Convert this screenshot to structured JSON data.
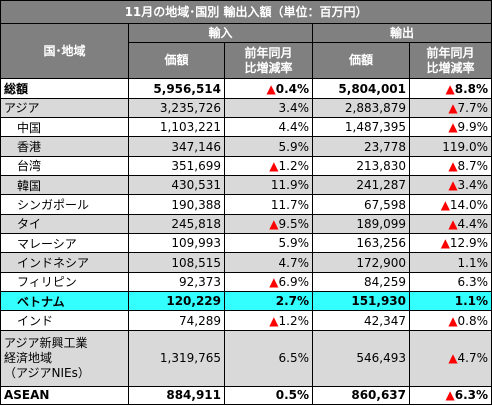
{
  "title": "11月の地域･国別 輸出入額（単位：百万円）",
  "header": {
    "region_label": "国･地域",
    "import_label": "輸入",
    "export_label": "輸出",
    "value_label": "価額",
    "yoy_line1": "前年同月",
    "yoy_line2": "比増減率"
  },
  "rows": [
    {
      "name": "総額",
      "imp": "5,956,514",
      "imp_tri": "▲",
      "imp_pct": "0.4%",
      "exp": "5,804,001",
      "exp_tri": "▲",
      "exp_pct": "8.8%",
      "style": "bold white",
      "indent": false
    },
    {
      "name": "アジア",
      "imp": "3,235,726",
      "imp_tri": "",
      "imp_pct": "3.4%",
      "exp": "2,883,879",
      "exp_tri": "▲",
      "exp_pct": "7.7%",
      "style": "gray",
      "indent": false
    },
    {
      "name": "中国",
      "imp": "1,103,221",
      "imp_tri": "",
      "imp_pct": "4.4%",
      "exp": "1,487,395",
      "exp_tri": "▲",
      "exp_pct": "9.9%",
      "style": "white",
      "indent": true
    },
    {
      "name": "香港",
      "imp": "347,146",
      "imp_tri": "",
      "imp_pct": "5.9%",
      "exp": "23,778",
      "exp_tri": "",
      "exp_pct": "119.0%",
      "style": "gray",
      "indent": true
    },
    {
      "name": "台湾",
      "imp": "351,699",
      "imp_tri": "▲",
      "imp_pct": "1.2%",
      "exp": "213,830",
      "exp_tri": "▲",
      "exp_pct": "8.7%",
      "style": "white",
      "indent": true
    },
    {
      "name": "韓国",
      "imp": "430,531",
      "imp_tri": "",
      "imp_pct": "11.9%",
      "exp": "241,287",
      "exp_tri": "▲",
      "exp_pct": "3.4%",
      "style": "gray",
      "indent": true
    },
    {
      "name": "シンガポール",
      "imp": "190,388",
      "imp_tri": "",
      "imp_pct": "11.7%",
      "exp": "67,598",
      "exp_tri": "▲",
      "exp_pct": "14.0%",
      "style": "white",
      "indent": true
    },
    {
      "name": "タイ",
      "imp": "245,818",
      "imp_tri": "▲",
      "imp_pct": "9.5%",
      "exp": "189,099",
      "exp_tri": "▲",
      "exp_pct": "4.4%",
      "style": "gray",
      "indent": true
    },
    {
      "name": "マレーシア",
      "imp": "109,993",
      "imp_tri": "",
      "imp_pct": "5.9%",
      "exp": "163,256",
      "exp_tri": "▲",
      "exp_pct": "12.9%",
      "style": "white",
      "indent": true
    },
    {
      "name": "インドネシア",
      "imp": "108,515",
      "imp_tri": "",
      "imp_pct": "4.7%",
      "exp": "172,900",
      "exp_tri": "",
      "exp_pct": "1.1%",
      "style": "gray",
      "indent": true
    },
    {
      "name": "フィリピン",
      "imp": "92,373",
      "imp_tri": "▲",
      "imp_pct": "6.9%",
      "exp": "84,259",
      "exp_tri": "",
      "exp_pct": "6.3%",
      "style": "white",
      "indent": true
    },
    {
      "name": "ベトナム",
      "imp": "120,229",
      "imp_tri": "",
      "imp_pct": "2.7%",
      "exp": "151,930",
      "exp_tri": "",
      "exp_pct": "1.1%",
      "style": "cyan",
      "indent": true
    },
    {
      "name": "インド",
      "imp": "74,289",
      "imp_tri": "▲",
      "imp_pct": "1.2%",
      "exp": "42,347",
      "exp_tri": "▲",
      "exp_pct": "0.8%",
      "style": "white",
      "indent": true
    }
  ],
  "nies": {
    "line1": "アジア新興工業",
    "line2": "経済地域",
    "line3": "（アジアNIEs）",
    "imp": "1,319,765",
    "imp_tri": "",
    "imp_pct": "6.5%",
    "exp": "546,493",
    "exp_tri": "▲",
    "exp_pct": "4.7%"
  },
  "asean": {
    "name": "ASEAN",
    "imp": "884,911",
    "imp_tri": "",
    "imp_pct": "0.5%",
    "exp": "860,637",
    "exp_tri": "▲",
    "exp_pct": "6.3%"
  }
}
